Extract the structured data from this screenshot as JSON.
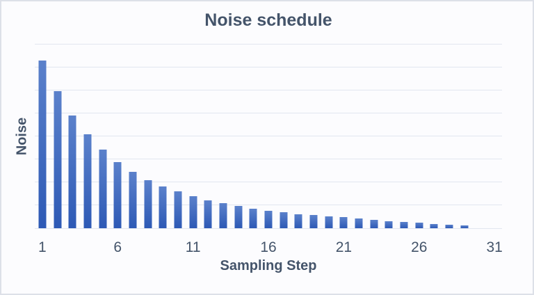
{
  "colors": {
    "bar_gradient_top": "#5b81cb",
    "bar_gradient_bottom": "#2d59b5",
    "text": "#44546a",
    "gridline": "#e2e6f0",
    "figure_background": "#fcfcfe",
    "figure_border": "#dde0e8"
  },
  "chart_data": {
    "type": "bar",
    "title": "Noise schedule",
    "xlabel": "Sampling Step",
    "ylabel": "Noise",
    "categories": [
      1,
      2,
      3,
      4,
      5,
      6,
      7,
      8,
      9,
      10,
      11,
      12,
      13,
      14,
      15,
      16,
      17,
      18,
      19,
      20,
      21,
      22,
      23,
      24,
      25,
      26,
      27,
      28,
      29,
      30,
      31
    ],
    "values": [
      7.27,
      5.96,
      4.89,
      4.08,
      3.41,
      2.86,
      2.44,
      2.08,
      1.82,
      1.6,
      1.4,
      1.21,
      1.08,
      0.98,
      0.86,
      0.76,
      0.68,
      0.61,
      0.56,
      0.52,
      0.47,
      0.42,
      0.36,
      0.31,
      0.27,
      0.23,
      0.19,
      0.15,
      0.11,
      0,
      0
    ],
    "ylim": [
      0,
      8
    ],
    "gridline_interval": 1,
    "grid": "horizontal",
    "x_tick_positions": [
      1,
      6,
      11,
      16,
      21,
      26,
      31
    ],
    "x_tick_labels": [
      "1",
      "6",
      "11",
      "16",
      "21",
      "26",
      "31"
    ],
    "y_tick_labels": [],
    "legend": "none",
    "bar_fill": "vertical-gradient"
  }
}
